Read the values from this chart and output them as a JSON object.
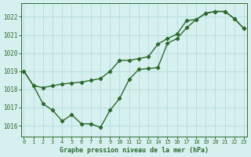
{
  "line1_x": [
    0,
    1,
    2,
    3,
    4,
    5,
    6,
    7,
    8,
    9,
    10,
    11,
    12,
    13,
    14,
    15,
    16,
    17,
    18,
    19,
    20,
    21,
    22,
    23
  ],
  "line1_y": [
    1019.0,
    1018.2,
    1018.1,
    1018.2,
    1018.3,
    1018.35,
    1018.4,
    1018.5,
    1018.6,
    1019.0,
    1019.6,
    1019.6,
    1019.7,
    1019.8,
    1020.5,
    1020.8,
    1021.05,
    1021.8,
    1021.85,
    1022.2,
    1022.3,
    1022.3,
    1021.9,
    1021.35
  ],
  "line2_x": [
    0,
    1,
    2,
    3,
    4,
    5,
    6,
    7,
    8,
    9,
    10,
    11,
    12,
    13,
    14,
    15,
    16,
    17,
    18,
    19,
    20,
    21,
    22,
    23
  ],
  "line2_y": [
    1019.0,
    1018.2,
    1017.2,
    1016.85,
    1016.25,
    1016.6,
    1016.1,
    1016.1,
    1015.9,
    1016.85,
    1017.5,
    1018.55,
    1019.1,
    1019.15,
    1019.2,
    1020.55,
    1020.8,
    1021.4,
    1021.85,
    1022.2,
    1022.3,
    1022.3,
    1021.9,
    1021.35
  ],
  "line_color": "#2d6a2d",
  "bg_color": "#d6f0f0",
  "grid_color": "#b8dede",
  "xlabel": "Graphe pression niveau de la mer (hPa)",
  "xlabel_color": "#2d6a2d",
  "tick_color": "#2d6a2d",
  "ylim": [
    1015.4,
    1022.75
  ],
  "xlim": [
    -0.3,
    23.3
  ],
  "yticks": [
    1016,
    1017,
    1018,
    1019,
    1020,
    1021,
    1022
  ],
  "xticks": [
    0,
    1,
    2,
    3,
    4,
    5,
    6,
    7,
    8,
    9,
    10,
    11,
    12,
    13,
    14,
    15,
    16,
    17,
    18,
    19,
    20,
    21,
    22,
    23
  ],
  "marker": "D",
  "marker_size": 2.2,
  "line_width": 1.0
}
